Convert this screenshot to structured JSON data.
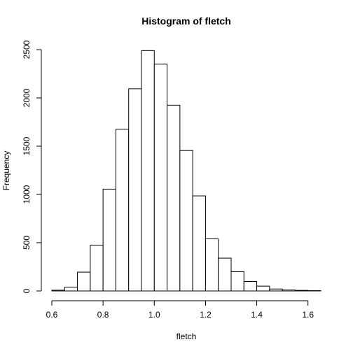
{
  "chart_data": {
    "type": "bar",
    "title": "Histogram of fletch",
    "xlabel": "fletch",
    "ylabel": "Frequency",
    "bin_edges": [
      0.6,
      0.65,
      0.7,
      0.75,
      0.8,
      0.85,
      0.9,
      0.95,
      1.0,
      1.05,
      1.1,
      1.15,
      1.2,
      1.25,
      1.3,
      1.35,
      1.4,
      1.45,
      1.5,
      1.55,
      1.6,
      1.65
    ],
    "values": [
      8,
      40,
      195,
      475,
      1055,
      1675,
      2095,
      2490,
      2350,
      1925,
      1455,
      985,
      540,
      340,
      200,
      98,
      50,
      20,
      10,
      6,
      3
    ],
    "xlim": [
      0.6,
      1.65
    ],
    "ylim": [
      0,
      2500
    ],
    "x_ticks": [
      0.6,
      0.8,
      1.0,
      1.2,
      1.4,
      1.6
    ],
    "x_tick_labels": [
      "0.6",
      "0.8",
      "1.0",
      "1.2",
      "1.4",
      "1.6"
    ],
    "y_ticks": [
      0,
      500,
      1000,
      1500,
      2000,
      2500
    ],
    "y_tick_labels": [
      "0",
      "500",
      "1000",
      "1500",
      "2000",
      "2500"
    ],
    "grid": false,
    "legend": "none"
  }
}
